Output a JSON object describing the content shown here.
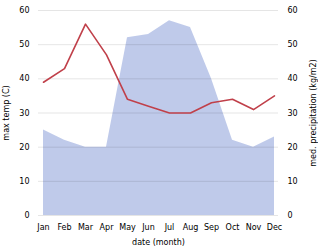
{
  "chart_data": {
    "type": "line",
    "categories": [
      "Jan",
      "Feb",
      "Mar",
      "Apr",
      "May",
      "Jun",
      "Jul",
      "Aug",
      "Sep",
      "Oct",
      "Nov",
      "Dec"
    ],
    "series": [
      {
        "type": "area",
        "axis": "y2",
        "color": "#b8c4e8",
        "values": [
          25,
          22,
          20,
          20,
          52,
          53,
          57,
          55,
          40,
          22,
          20,
          23
        ]
      },
      {
        "type": "line",
        "color": "#c0404a",
        "values": [
          39,
          43,
          56,
          47,
          34,
          32,
          30,
          30,
          33,
          34,
          31,
          35
        ]
      }
    ],
    "xlabel": "date (month)",
    "ylabel": "max temp (C)",
    "y2label": "med. precipitation (kg/m2)",
    "ylim": [
      0,
      60
    ],
    "yticks": [
      0,
      10,
      20,
      30,
      40,
      50,
      60
    ],
    "y2lim": [
      0,
      60
    ],
    "y2ticks": [
      0,
      10,
      20,
      30,
      40,
      50,
      60
    ],
    "grid": true
  }
}
